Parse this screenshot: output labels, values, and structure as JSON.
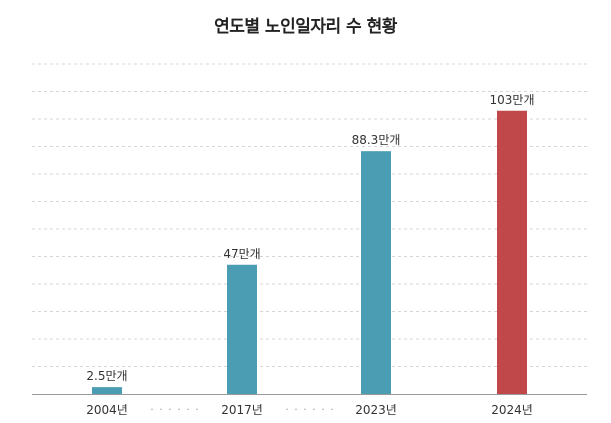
{
  "chart_data": {
    "type": "bar",
    "title": "연도별 노인일자리 수 현황",
    "categories": [
      "2004년",
      "2017년",
      "2023년",
      "2024년"
    ],
    "values": [
      2.5,
      47,
      88.3,
      103
    ],
    "data_labels": [
      "2.5만개",
      "47만개",
      "88.3만개",
      "103만개"
    ],
    "unit": "만개",
    "ylim": [
      0,
      120
    ],
    "grid": true,
    "legend": "none",
    "axis_gaps": [
      "· · · · · ·",
      "· · · · · ·"
    ],
    "colors": [
      "#4a9db3",
      "#4a9db3",
      "#4a9db3",
      "#c0484a"
    ]
  }
}
